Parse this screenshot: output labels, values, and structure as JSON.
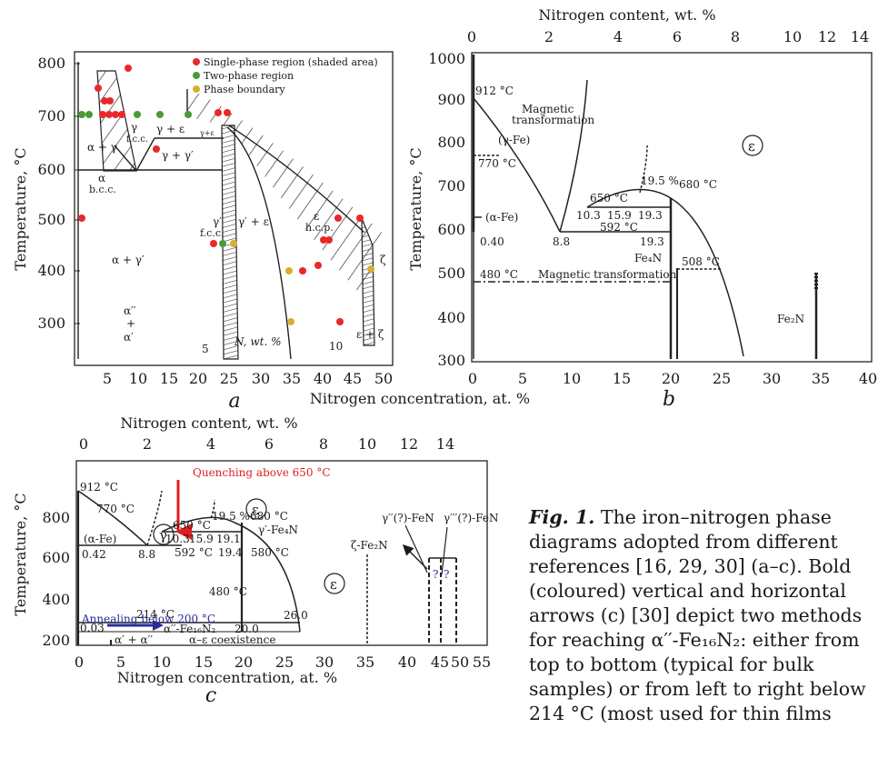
{
  "panels": {
    "a": {
      "letter": "a",
      "ylabel": "Temperature, °C",
      "xlabel": "N, wt. %",
      "yticks": [
        "800",
        "700",
        "600",
        "500",
        "400",
        "300"
      ],
      "xticks": [
        "5",
        "10",
        "15",
        "20",
        "25",
        "30",
        "35",
        "40",
        "45",
        "50"
      ],
      "legend": [
        "Single-phase region (shaded area)",
        "Two-phase region",
        "Phase boundary"
      ],
      "labels": {
        "gfcc_top": "γ",
        "gfcc_top2": "f.c.c.",
        "g_eps": "γ + ε",
        "g_eps_small": "γ+ε",
        "a_g": "α + γ",
        "g_gp": "γ + γ′",
        "alpha": "α",
        "bcc": "b.c.c.",
        "a_gp": "α + γ′",
        "gp": "γ′",
        "gp_fcc": "f.c.c.",
        "gp_eps": "γ′ + ε",
        "eps": "ε",
        "hcp": "h.c.p.",
        "zeta": "ζ",
        "eps_zeta": "ε + ζ",
        "a2": "α′′",
        "plus": "+",
        "a1": "α′",
        "wt5": "5",
        "wt10": "10"
      }
    },
    "b": {
      "letter": "b",
      "top_title": "Nitrogen content, wt. %",
      "top_ticks": [
        "0",
        "2",
        "4",
        "6",
        "8",
        "10",
        "12",
        "14"
      ],
      "ylabel": "Temperature, °C",
      "xlabel": "Nitrogen concentration, at. %",
      "yticks": [
        "1000",
        "900",
        "800",
        "700",
        "600",
        "500",
        "400",
        "300"
      ],
      "xticks": [
        "0",
        "5",
        "10",
        "15",
        "20",
        "25",
        "30",
        "35",
        "40"
      ],
      "labels": {
        "t912": "912 °C",
        "mag1": "Magnetic",
        "mag2": "transformation",
        "gfe": "(γ-Fe)",
        "t770": "770 °C",
        "eps": "ε",
        "p195": "19.5 %",
        "t680": "680 °C",
        "t650": "650 °C",
        "afe": "(α-Fe)",
        "c103": "10.3",
        "c159": "15.9",
        "c193a": "19.3",
        "t592": "592 °C",
        "c040": "0.40",
        "c88": "8.8",
        "c193b": "19.3",
        "fe4n": "Fe₄N",
        "t508": "508 °C",
        "t480": "480 °C",
        "magtr": "Magnetic transformation",
        "fe2n": "Fe₂N"
      }
    },
    "c": {
      "letter": "c",
      "top_title": "Nitrogen content, wt. %",
      "top_ticks": [
        "0",
        "2",
        "4",
        "6",
        "8",
        "10",
        "12",
        "14"
      ],
      "ylabel": "Temperature, °C",
      "xlabel": "Nitrogen concentration, at. %",
      "yticks": [
        "800",
        "600",
        "400",
        "200"
      ],
      "xticks": [
        "0",
        "5",
        "10",
        "15",
        "20",
        "25",
        "30",
        "35",
        "40",
        "45",
        "50",
        "55"
      ],
      "labels": {
        "quench": "Quenching above 650 °C",
        "anneal": "Annealing below 200 °C",
        "t912": "912 °C",
        "t770": "770 °C",
        "gamma": "γ",
        "eps": "ε",
        "p195": "19.5 %",
        "t680": "680 °C",
        "gfe4n": "γ′-Fe₄N",
        "afe": "(α-Fe)",
        "t650": "650 °C",
        "c042": "0.42",
        "c88": "8.8",
        "c103": "10.3",
        "c159": "15.9",
        "c191": "19.1",
        "t592": "592 °C",
        "c194": "19.4",
        "t580": "580 °C",
        "t480": "480 °C",
        "eps2": "ε",
        "zeta": "ζ-Fe₂N",
        "g2feN": "γ′′(?)-FeN",
        "g3feN": "γ′′′(?)-FeN",
        "q1": "?",
        "q2": "?",
        "t214": "214 °C",
        "c003": "0.03",
        "a2fe16": "α′′-Fe₁₆N₂",
        "c200": "20.0",
        "c260": "26.0",
        "a1a2": "α′ + α′′",
        "coex": "α–ε coexistence"
      }
    }
  },
  "caption": {
    "fig": "Fig. 1.",
    "text": "The iron–nitrogen phase diagrams adopted from different references [16, 29, 30] (a–c). Bold (coloured) vertical and horizontal arrows (c) [30] depict two methods for reaching α′′-Fe₁₆N₂: either from top to bottom (typical for bulk samples) or from left to right below 214 °C (most used for thin films"
  },
  "colors": {
    "red_dot": "#e8282a",
    "green_dot": "#4a9a3a",
    "blue_arrow": "#2a2a9a",
    "red_arrow": "#e02020",
    "hatch": "#333333"
  }
}
